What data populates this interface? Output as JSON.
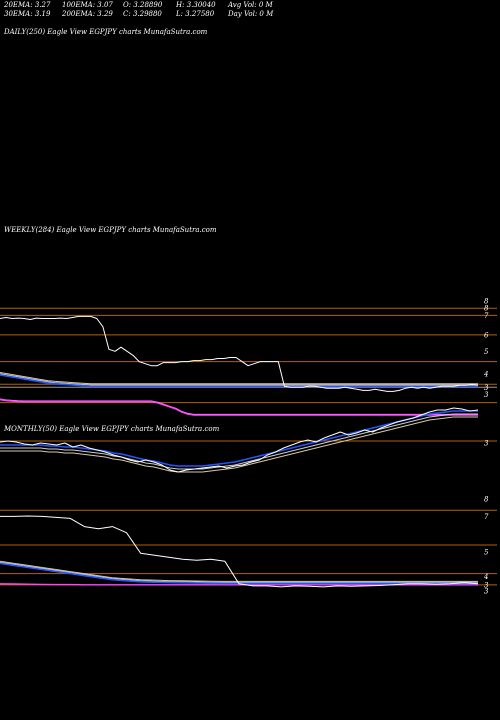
{
  "header": {
    "col1": [
      "20EMA: 3.27",
      "30EMA: 3.19"
    ],
    "col2": [
      "100EMA: 3.07",
      "200EMA: 3.29"
    ],
    "col3": [
      "O: 3.28890",
      "C: 3.29880"
    ],
    "col4": [
      "H: 3.30040",
      "L: 3.27580"
    ],
    "col5": [
      "Avg Vol: 0  M",
      "Day Vol: 0  M"
    ]
  },
  "panels": {
    "daily_label": "DAILY(250) Eagle  View  EGPJPY charts MunafaSutra.com",
    "weekly_label": "WEEKLY(284) Eagle  View  EGPJPY charts MunafaSutra.com",
    "monthly_label": "MONTHLY(50) Eagle  View  EGPJPY charts MunafaSutra.com"
  },
  "colors": {
    "background": "#000000",
    "price": "#ffffff",
    "ema_blue": "#2255ff",
    "ema_magenta": "#ff44ff",
    "ema_tan": "#d8c8a8",
    "ema_white": "#cccccc",
    "level_orange": "#b45f06",
    "level_gray": "#999999"
  },
  "chart_data": [
    {
      "type": "line",
      "name": "weekly",
      "yticks": [
        "8",
        "8",
        "7",
        "6",
        "5",
        "4",
        "3",
        "3"
      ],
      "price": [
        7.1,
        7.15,
        7.1,
        7.12,
        7.1,
        7.05,
        7.12,
        7.1,
        7.1,
        7.1,
        7.12,
        7.1,
        7.15,
        7.2,
        7.2,
        7.2,
        7.1,
        6.7,
        5.6,
        5.5,
        5.7,
        5.5,
        5.3,
        5.0,
        4.9,
        4.8,
        4.8,
        4.95,
        4.95,
        4.95,
        5.0,
        5.0,
        5.05,
        5.05,
        5.1,
        5.1,
        5.15,
        5.15,
        5.2,
        5.2,
        5.0,
        4.8,
        4.9,
        5.0,
        5.0,
        5.0,
        5.0,
        3.8,
        3.75,
        3.75,
        3.75,
        3.8,
        3.8,
        3.75,
        3.7,
        3.7,
        3.7,
        3.75,
        3.7,
        3.65,
        3.6,
        3.6,
        3.65,
        3.6,
        3.55,
        3.55,
        3.6,
        3.7,
        3.75,
        3.7,
        3.75,
        3.7,
        3.75,
        3.8,
        3.8,
        3.8,
        3.85,
        3.85,
        3.9,
        3.85
      ],
      "ema_blue": [
        4.35,
        4.3,
        4.25,
        4.2,
        4.15,
        4.1,
        4.05,
        4.0,
        3.95,
        3.92,
        3.9,
        3.88,
        3.86,
        3.84,
        3.82,
        3.8,
        3.8,
        3.8,
        3.8,
        3.8,
        3.8,
        3.8,
        3.8,
        3.8,
        3.8,
        3.8,
        3.8,
        3.8,
        3.8,
        3.8,
        3.8,
        3.8,
        3.8,
        3.8,
        3.8,
        3.8,
        3.8,
        3.8,
        3.8,
        3.8,
        3.8,
        3.8,
        3.8,
        3.8,
        3.8,
        3.8,
        3.8,
        3.8,
        3.8,
        3.8,
        3.8,
        3.8,
        3.8,
        3.8,
        3.8,
        3.8,
        3.8,
        3.8,
        3.8,
        3.8,
        3.8,
        3.8,
        3.8,
        3.8,
        3.8,
        3.8,
        3.8,
        3.8,
        3.8,
        3.8,
        3.8,
        3.8,
        3.8,
        3.8,
        3.8,
        3.8,
        3.8,
        3.8,
        3.8,
        3.8
      ],
      "ema_magenta": [
        3.15,
        3.1,
        3.08,
        3.06,
        3.05,
        3.05,
        3.05,
        3.05,
        3.05,
        3.05,
        3.05,
        3.05,
        3.05,
        3.05,
        3.05,
        3.05,
        3.05,
        3.05,
        3.05,
        3.05,
        3.05,
        3.05,
        3.05,
        3.05,
        3.05,
        3.05,
        3.0,
        2.9,
        2.8,
        2.7,
        2.55,
        2.45,
        2.4,
        2.4,
        2.4,
        2.4,
        2.4,
        2.4,
        2.4,
        2.4,
        2.4,
        2.4,
        2.4,
        2.4,
        2.4,
        2.4,
        2.4,
        2.4,
        2.4,
        2.4,
        2.4,
        2.4,
        2.4,
        2.4,
        2.4,
        2.4,
        2.4,
        2.4,
        2.4,
        2.4,
        2.4,
        2.4,
        2.4,
        2.4,
        2.4,
        2.4,
        2.4,
        2.4,
        2.4,
        2.4,
        2.4,
        2.4,
        2.4,
        2.4,
        2.4,
        2.4,
        2.4,
        2.4,
        2.4,
        2.4
      ]
    },
    {
      "type": "line",
      "name": "daily",
      "yticks": [
        "3"
      ],
      "price": [
        2.98,
        2.99,
        2.98,
        2.96,
        2.95,
        2.97,
        2.96,
        2.95,
        2.97,
        2.93,
        2.95,
        2.92,
        2.9,
        2.88,
        2.85,
        2.83,
        2.8,
        2.78,
        2.8,
        2.78,
        2.75,
        2.7,
        2.68,
        2.7,
        2.71,
        2.72,
        2.73,
        2.74,
        2.72,
        2.74,
        2.75,
        2.78,
        2.8,
        2.85,
        2.88,
        2.92,
        2.95,
        2.98,
        3.0,
        2.98,
        3.02,
        3.05,
        3.08,
        3.05,
        3.07,
        3.1,
        3.08,
        3.12,
        3.15,
        3.18,
        3.2,
        3.22,
        3.25,
        3.28,
        3.3,
        3.3,
        3.32,
        3.31,
        3.29,
        3.3
      ],
      "ema_blue": [
        2.95,
        2.95,
        2.95,
        2.95,
        2.95,
        2.95,
        2.94,
        2.94,
        2.93,
        2.93,
        2.92,
        2.91,
        2.9,
        2.89,
        2.87,
        2.86,
        2.84,
        2.82,
        2.8,
        2.79,
        2.77,
        2.75,
        2.74,
        2.74,
        2.74,
        2.74,
        2.75,
        2.76,
        2.77,
        2.78,
        2.8,
        2.82,
        2.84,
        2.86,
        2.88,
        2.9,
        2.92,
        2.94,
        2.96,
        2.98,
        3.0,
        3.02,
        3.04,
        3.06,
        3.08,
        3.1,
        3.12,
        3.14,
        3.16,
        3.18,
        3.2,
        3.22,
        3.24,
        3.26,
        3.27,
        3.28,
        3.29,
        3.29,
        3.29,
        3.29
      ]
    },
    {
      "type": "line",
      "name": "monthly",
      "yticks": [
        "8",
        "7",
        "5",
        "4",
        "3",
        "3"
      ],
      "price": [
        7.1,
        7.1,
        7.12,
        7.1,
        7.05,
        7.0,
        6.6,
        6.5,
        6.6,
        6.3,
        5.3,
        5.2,
        5.1,
        5.0,
        4.95,
        5.0,
        4.9,
        3.8,
        3.7,
        3.7,
        3.65,
        3.7,
        3.68,
        3.65,
        3.7,
        3.68,
        3.7,
        3.72,
        3.75,
        3.8,
        3.8,
        3.78,
        3.8,
        3.85,
        3.8
      ],
      "ema_blue": [
        4.8,
        4.7,
        4.6,
        4.5,
        4.4,
        4.3,
        4.2,
        4.1,
        4.0,
        3.95,
        3.9,
        3.88,
        3.86,
        3.85,
        3.84,
        3.83,
        3.82,
        3.82,
        3.82,
        3.82,
        3.82,
        3.82,
        3.82,
        3.82,
        3.82,
        3.82,
        3.82,
        3.82,
        3.82,
        3.82,
        3.82,
        3.82,
        3.82,
        3.82,
        3.82
      ],
      "ema_magenta": [
        3.8,
        3.79,
        3.78,
        3.77,
        3.76,
        3.76,
        3.75,
        3.75,
        3.75,
        3.75,
        3.75,
        3.75,
        3.75,
        3.75,
        3.75,
        3.75,
        3.75,
        3.75,
        3.75,
        3.75,
        3.75,
        3.75,
        3.75,
        3.75,
        3.75,
        3.75,
        3.75,
        3.75,
        3.75,
        3.75,
        3.75,
        3.75,
        3.75,
        3.75,
        3.75
      ]
    }
  ]
}
